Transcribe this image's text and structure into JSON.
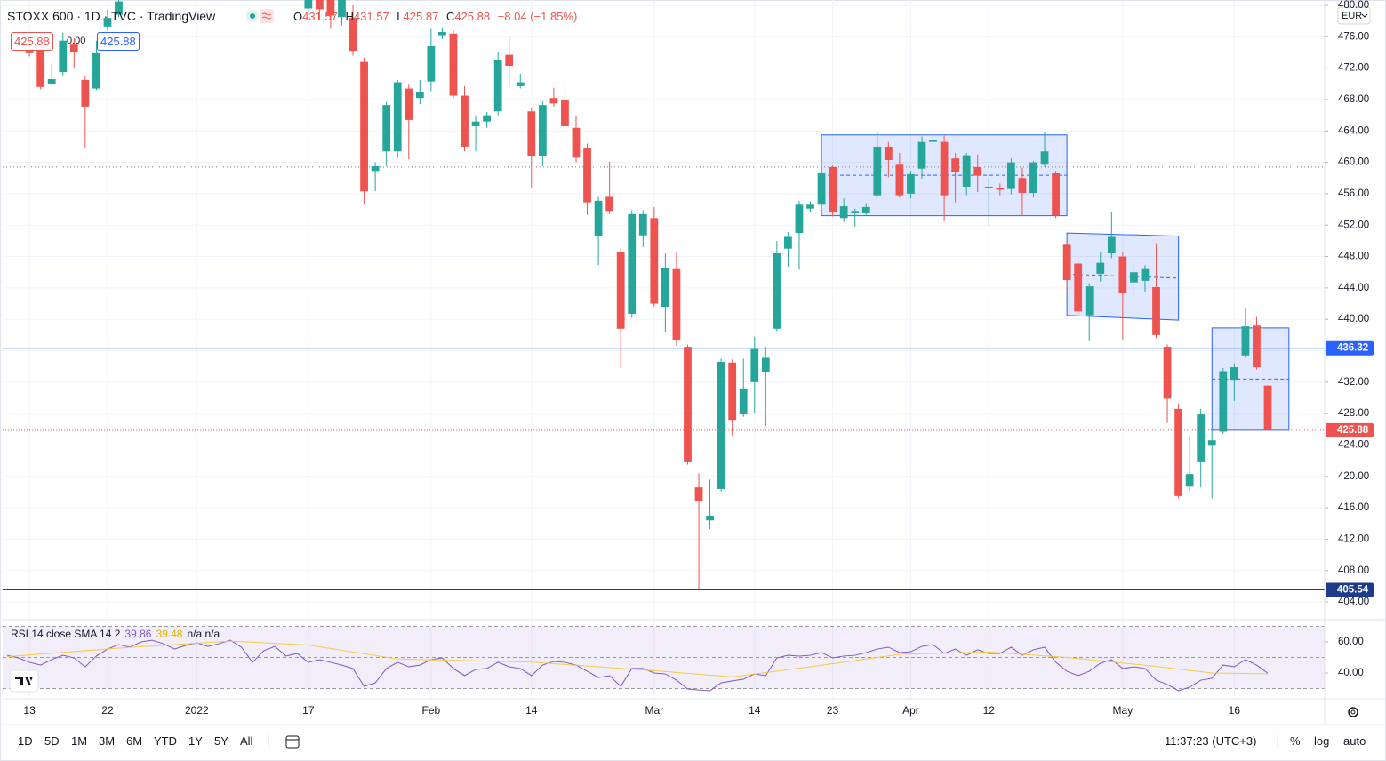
{
  "header": {
    "symbol": "STOXX 600 · 1D · TVC · TradingView",
    "ohlc_keys": [
      "O",
      "H",
      "L",
      "C"
    ],
    "change": "−8.04 (−1.85%)",
    "trade": {
      "sell": "425.88",
      "spread": "0.00",
      "buy": "425.88"
    },
    "currency": "EUR"
  },
  "chart_data": [
    {
      "type": "candlestick",
      "x": [
        0,
        1,
        2,
        3,
        4,
        5,
        6,
        7,
        8,
        25,
        26,
        27,
        28,
        29,
        30,
        31,
        32,
        33,
        34,
        35,
        36,
        37,
        38,
        39,
        40,
        41,
        42,
        43,
        44,
        45,
        46,
        47,
        48,
        49,
        50,
        51,
        52,
        53,
        54,
        55,
        56,
        57,
        58,
        59,
        60,
        61,
        62,
        63,
        64,
        65,
        66,
        67,
        68,
        69,
        70,
        71,
        72,
        73,
        74,
        75,
        76,
        77,
        78,
        79,
        80,
        81,
        82,
        83,
        84,
        85,
        86,
        87,
        88,
        89,
        90,
        91,
        92,
        93,
        94,
        95,
        96,
        97,
        98,
        99,
        100,
        101,
        102,
        103,
        104,
        105,
        106,
        107,
        108,
        109,
        110,
        111
      ],
      "open": [
        474.5,
        475.6,
        470.0,
        471.5,
        475.0,
        470.5,
        469.4,
        477.3,
        478.8,
        479.6,
        481.0,
        481.0,
        478.5,
        478.4,
        472.8,
        458.9,
        461.4,
        461.4,
        469.4,
        468.2,
        470.3,
        476.2,
        476.4,
        468.5,
        464.6,
        465.2,
        466.5,
        473.7,
        469.7,
        466.5,
        460.8,
        468.2,
        467.9,
        464.4,
        461.8,
        450.6,
        455.6,
        448.6,
        440.7,
        450.7,
        452.9,
        441.6,
        446.4,
        436.5,
        418.6,
        414.4,
        418.4,
        434.5,
        427.9,
        432.0,
        433.3,
        438.8,
        449.0,
        451.0,
        454.1,
        454.6,
        459.4,
        452.9,
        453.5,
        453.5,
        455.8,
        462.0,
        459.7,
        456.0,
        459.2,
        462.6,
        462.6,
        460.5,
        456.9,
        459.4,
        456.7,
        456.7,
        456.6,
        458.0,
        456.1,
        459.7,
        458.6,
        449.5,
        447.1,
        440.5,
        445.8,
        448.4,
        448.0,
        444.7,
        444.9,
        444.1,
        436.5,
        428.6,
        418.7,
        421.8,
        423.9,
        425.7,
        432.3,
        435.4,
        439.2,
        431.57
      ],
      "high": [
        476,
        476.2,
        472.5,
        476.5,
        475.8,
        471.0,
        475.5,
        479.5,
        481.0,
        481.5,
        481.5,
        481.5,
        481.5,
        480.0,
        473.3,
        460.0,
        467.7,
        470.5,
        469.9,
        470.5,
        477.0,
        477.2,
        476.8,
        469.7,
        466.0,
        466.4,
        474.0,
        475.9,
        471.3,
        467.0,
        467.8,
        469.5,
        469.8,
        466.0,
        462.4,
        455.6,
        460.1,
        449.1,
        453.9,
        453.9,
        454.3,
        448.4,
        448.6,
        436.8,
        420.4,
        419.6,
        435.0,
        434.9,
        435.0,
        437.8,
        436.5,
        450.0,
        451.1,
        455.1,
        455.0,
        458.8,
        459.6,
        455.4,
        454.1,
        454.8,
        463.9,
        462.6,
        461.2,
        458.9,
        463.3,
        464.2,
        463.4,
        461.2,
        461.2,
        461.0,
        458.0,
        457.3,
        460.5,
        459.3,
        460.2,
        463.9,
        458.9,
        449.8,
        447.6,
        444.6,
        448.5,
        453.7,
        448.5,
        447.0,
        446.9,
        449.7,
        436.8,
        429.3,
        425.0,
        428.6,
        426.0,
        433.8,
        434.4,
        441.4,
        440.3,
        431.57
      ],
      "low": [
        473.5,
        469.3,
        469.8,
        471.0,
        472.0,
        461.8,
        469.2,
        476.8,
        478.5,
        479.2,
        478.2,
        477.0,
        477.5,
        473.6,
        454.6,
        456.3,
        459.5,
        460.6,
        460.4,
        467.4,
        469.1,
        475.7,
        468.2,
        461.4,
        461.4,
        464.4,
        466.0,
        469.8,
        469.4,
        456.8,
        459.5,
        467.1,
        463.5,
        460.0,
        453.3,
        446.9,
        453.4,
        433.8,
        440.2,
        449.2,
        441.6,
        438.4,
        436.7,
        421.5,
        405.54,
        413.3,
        418.1,
        425.2,
        427.6,
        428.0,
        426.4,
        438.5,
        446.7,
        446.3,
        453.7,
        453.9,
        453.1,
        452.4,
        451.8,
        453.3,
        455.5,
        458.1,
        455.5,
        455.4,
        457.9,
        462.4,
        452.5,
        454.9,
        455.8,
        456.2,
        451.9,
        455.8,
        455.9,
        453.2,
        455.5,
        459.4,
        452.9,
        443.7,
        440.6,
        437.2,
        444.8,
        447.8,
        437.3,
        442.9,
        443.5,
        437.6,
        426.8,
        417.2,
        418.0,
        418.6,
        417.2,
        425.4,
        429.6,
        435.1,
        433.6,
        425.87
      ],
      "close": [
        473.9,
        469.6,
        470.6,
        475.5,
        474.0,
        467.1,
        473.9,
        478.4,
        480.5,
        481.0,
        479.5,
        478.7,
        481.0,
        474.2,
        456.3,
        459.5,
        467.3,
        470.2,
        465.4,
        469.0,
        474.8,
        476.6,
        468.5,
        462.0,
        465.2,
        466.0,
        473.1,
        472.3,
        470.2,
        460.8,
        467.3,
        467.5,
        464.6,
        460.6,
        454.9,
        455.1,
        453.8,
        438.8,
        453.4,
        453.4,
        442.0,
        446.6,
        437.3,
        421.8,
        416.9,
        415.0,
        434.6,
        427.2,
        431.2,
        436.2,
        435.1,
        448.4,
        450.5,
        454.6,
        454.6,
        458.6,
        453.7,
        454.4,
        453.8,
        454.3,
        462.0,
        460.3,
        455.8,
        458.5,
        462.6,
        462.9,
        455.8,
        458.8,
        460.9,
        458.3,
        456.9,
        456.5,
        460.0,
        456.1,
        460.0,
        461.4,
        453.2,
        445.0,
        441.0,
        444.2,
        447.2,
        450.5,
        443.3,
        446.0,
        446.4,
        438.0,
        429.9,
        417.5,
        420.3,
        427.9,
        424.6,
        433.4,
        433.9,
        439.1,
        433.9,
        425.88
      ],
      "up_color": "#26a69a",
      "down_color": "#ef5350",
      "xlim": [
        -2.4,
        116.1
      ],
      "xticks": [
        {
          "value": 0,
          "label": "13"
        },
        {
          "value": 7,
          "label": "22"
        },
        {
          "value": 15,
          "label": "2022"
        },
        {
          "value": 25,
          "label": "17"
        },
        {
          "value": 36,
          "label": "Feb"
        },
        {
          "value": 45,
          "label": "14"
        },
        {
          "value": 56,
          "label": "Mar"
        },
        {
          "value": 65,
          "label": "14"
        },
        {
          "value": 72,
          "label": "23"
        },
        {
          "value": 79,
          "label": "Apr"
        },
        {
          "value": 86,
          "label": "12"
        },
        {
          "value": 98,
          "label": "May"
        },
        {
          "value": 108,
          "label": "16"
        }
      ],
      "ylim": [
        401.97,
        480.68
      ],
      "yticks": [
        {
          "value": 404,
          "label": "404.00"
        },
        {
          "value": 408,
          "label": "408.00"
        },
        {
          "value": 412,
          "label": "412.00"
        },
        {
          "value": 416,
          "label": "416.00"
        },
        {
          "value": 420,
          "label": "420.00"
        },
        {
          "value": 424,
          "label": "424.00"
        },
        {
          "value": 428,
          "label": "428.00"
        },
        {
          "value": 432,
          "label": "432.00"
        },
        {
          "value": 436,
          "label": "436.00"
        },
        {
          "value": 440,
          "label": "440.00"
        },
        {
          "value": 444,
          "label": "444.00"
        },
        {
          "value": 448,
          "label": "448.00"
        },
        {
          "value": 452,
          "label": "452.00"
        },
        {
          "value": 456,
          "label": "456.00"
        },
        {
          "value": 460,
          "label": "460.00"
        },
        {
          "value": 464,
          "label": "464.00"
        },
        {
          "value": 468,
          "label": "468.00"
        },
        {
          "value": 472,
          "label": "472.00"
        },
        {
          "value": 476,
          "label": "476.00"
        },
        {
          "value": 480,
          "label": "480.00"
        }
      ],
      "grid": true,
      "hlines": [
        {
          "value": 436.32,
          "color": "#2962ff",
          "labeled": true
        },
        {
          "value": 405.54,
          "color": "#1e3a8a",
          "labeled": true
        },
        {
          "value": 459.4,
          "color": "#787b86",
          "labeled": false
        }
      ],
      "rectangles": [
        {
          "x": [
            71,
            93
          ],
          "top": [
            463.5,
            463.5
          ],
          "bottom": [
            453.2,
            453.2
          ],
          "color": "#2962ff"
        },
        {
          "x": [
            93,
            103
          ],
          "top": [
            451.0,
            450.6
          ],
          "bottom": [
            440.5,
            439.9
          ],
          "color": "#2962ff"
        },
        {
          "x": [
            106,
            112.9
          ],
          "top": [
            438.9,
            438.9
          ],
          "bottom": [
            425.88,
            425.88
          ],
          "color": "#2962ff"
        }
      ]
    },
    {
      "type": "line",
      "title": "RSI 14 close SMA 14 2",
      "extra": "n/a n/a",
      "ylim": [
        24,
        74.3
      ],
      "yticks": [
        {
          "value": 40,
          "label": "40.00"
        },
        {
          "value": 60,
          "label": "60.00"
        }
      ],
      "bands": [
        30,
        50,
        70
      ],
      "band_color": "#7e57c2",
      "series": [
        {
          "color": "#7e57c2",
          "x": [
            -2,
            -1,
            0,
            1,
            2,
            3,
            4,
            5,
            6,
            7,
            8,
            9,
            10,
            11,
            12,
            13,
            14,
            15,
            16,
            17,
            18,
            19,
            20,
            21,
            22,
            23,
            24,
            25,
            26,
            27,
            28,
            29,
            30,
            31,
            32,
            33,
            34,
            35,
            36,
            37,
            38,
            39,
            40,
            41,
            42,
            43,
            44,
            45,
            46,
            47,
            48,
            49,
            50,
            51,
            52,
            53,
            54,
            55,
            56,
            57,
            58,
            59,
            60,
            61,
            62,
            63,
            64,
            65,
            66,
            67,
            68,
            69,
            70,
            71,
            72,
            73,
            74,
            75,
            76,
            77,
            78,
            79,
            80,
            81,
            82,
            83,
            84,
            85,
            86,
            87,
            88,
            89,
            90,
            91,
            92,
            93,
            94,
            95,
            96,
            97,
            98,
            99,
            100,
            101,
            102,
            103,
            104,
            105,
            106,
            107,
            108,
            109,
            110,
            111
          ],
          "values": [
            51.4,
            49.7,
            46.9,
            45.1,
            48.6,
            51.4,
            49.7,
            44.0,
            50.9,
            55.4,
            58.3,
            56.6,
            60.0,
            61.1,
            58.9,
            55.4,
            57.7,
            59.4,
            57.1,
            58.9,
            61.1,
            56.6,
            46.9,
            54.3,
            57.1,
            50.9,
            52.6,
            46.9,
            48.6,
            46.9,
            45.1,
            42.9,
            31.4,
            33.7,
            42.9,
            46.9,
            44.0,
            45.1,
            48.6,
            49.7,
            42.9,
            38.3,
            42.3,
            42.9,
            46.9,
            44.0,
            42.9,
            38.3,
            45.1,
            47.4,
            46.9,
            45.1,
            41.1,
            37.1,
            38.3,
            31.4,
            42.9,
            42.9,
            40.0,
            39.4,
            35.4,
            29.7,
            29.1,
            28.6,
            33.7,
            34.9,
            36.0,
            39.4,
            38.3,
            49.7,
            51.4,
            50.9,
            51.4,
            53.1,
            49.7,
            50.9,
            51.4,
            53.1,
            55.4,
            56.6,
            53.1,
            53.7,
            57.1,
            58.3,
            52.6,
            55.4,
            51.4,
            54.9,
            52.6,
            52.6,
            56.6,
            51.4,
            54.9,
            56.6,
            46.9,
            41.1,
            38.3,
            41.1,
            46.3,
            48.6,
            42.9,
            44.0,
            42.9,
            35.4,
            32.6,
            28.6,
            30.9,
            35.4,
            36.6,
            45.1,
            44.0,
            48.6,
            45.1,
            39.86
          ]
        },
        {
          "color": "#f7c948",
          "x": [
            -2,
            8,
            18,
            25,
            33,
            45,
            56,
            63,
            70,
            78,
            86,
            93,
            100,
            106,
            111
          ],
          "values": [
            50.5,
            56,
            60.5,
            58,
            49,
            47,
            41.5,
            37.5,
            44,
            52,
            53.5,
            50,
            45,
            40,
            39.48
          ]
        }
      ]
    }
  ],
  "toolbar": {
    "ranges": [
      "1D",
      "5D",
      "1M",
      "3M",
      "6M",
      "YTD",
      "1Y",
      "5Y",
      "All"
    ],
    "time": "11:37:23 (UTC+3)",
    "options": [
      "%",
      "log",
      "auto"
    ]
  }
}
